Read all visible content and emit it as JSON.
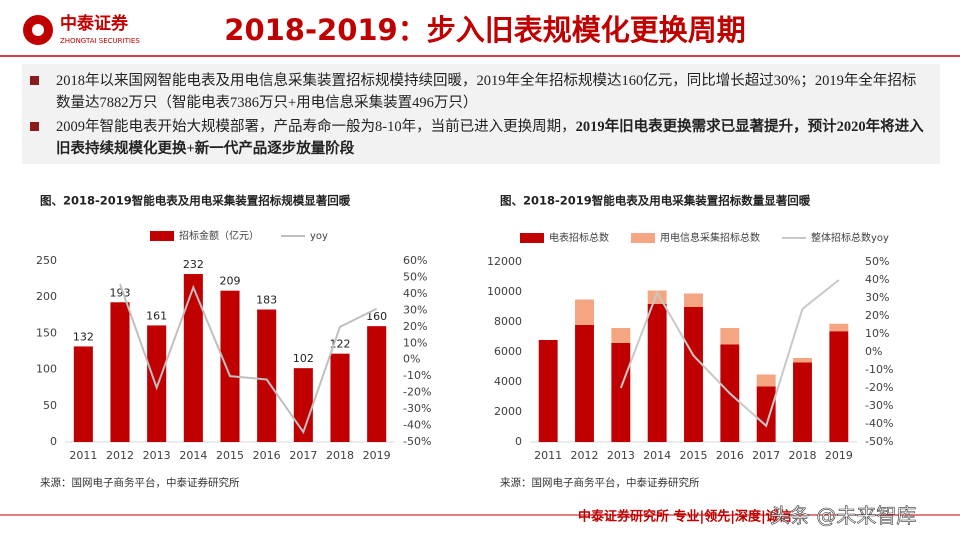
{
  "header": {
    "logo_cn": "中泰证券",
    "logo_en": "ZHONGTAI SECURITIES",
    "title": "2018-2019：步入旧表规模化更换周期"
  },
  "bullets": [
    {
      "text": "2018年以来国网智能电表及用电信息采集装置招标规模持续回暖，2019年全年招标规模达160亿元，同比增长超过30%；2019年全年招标数量达7882万只（智能电表7386万只+用电信息采集装置496万只）"
    },
    {
      "text": "2009年智能电表开始大规模部署，产品寿命一般为8-10年，当前已进入更换周期，",
      "bold": "2019年旧电表更换需求已显著提升，预计2020年将进入旧表持续规模化更换+新一代产品逐步放量阶段"
    }
  ],
  "footer": "中泰证券研究所 专业|领先|深度|诚信",
  "watermark": "头条 @未来智库",
  "chart_data": [
    {
      "type": "bar",
      "title": "图、2018-2019智能电表及用电采集装置招标规模显著回暖",
      "source": "来源：国网电子商务平台，中泰证券研究所",
      "categories": [
        "2011",
        "2012",
        "2013",
        "2014",
        "2015",
        "2016",
        "2017",
        "2018",
        "2019"
      ],
      "series": [
        {
          "name": "招标金额（亿元）",
          "color": "#c00000",
          "values": [
            132,
            193,
            161,
            232,
            209,
            183,
            102,
            122,
            160
          ]
        },
        {
          "name": "yoy",
          "color": "#bfbfbf",
          "type": "line",
          "axis": "y2",
          "values": [
            null,
            46,
            -17,
            44,
            -10,
            -12,
            -44,
            20,
            31
          ]
        }
      ],
      "value_labels_shown": true,
      "ylim": [
        0,
        250
      ],
      "yticks": [
        0,
        50,
        100,
        150,
        200,
        250
      ],
      "y2lim": [
        -50,
        60
      ],
      "y2ticks": [
        {
          "value": -50,
          "label": "-50%"
        },
        {
          "value": -40,
          "label": "-40%"
        },
        {
          "value": -30,
          "label": "-30%"
        },
        {
          "value": -20,
          "label": "-20%"
        },
        {
          "value": -10,
          "label": "-10%"
        },
        {
          "value": 0,
          "label": "0%"
        },
        {
          "value": 10,
          "label": "10%"
        },
        {
          "value": 20,
          "label": "20%"
        },
        {
          "value": 30,
          "label": "30%"
        },
        {
          "value": 40,
          "label": "40%"
        },
        {
          "value": 50,
          "label": "50%"
        },
        {
          "value": 60,
          "label": "60%"
        }
      ]
    },
    {
      "type": "stacked_bar",
      "title": "图、2018-2019智能电表及用电采集装置招标数量显著回暖",
      "source": "来源：国网电子商务平台，中泰证券研究所",
      "categories": [
        "2011",
        "2012",
        "2013",
        "2014",
        "2015",
        "2016",
        "2017",
        "2018",
        "2019"
      ],
      "series": [
        {
          "name": "电表招标总数",
          "color": "#c00000",
          "values": [
            6800,
            7800,
            6600,
            9200,
            9000,
            6500,
            3700,
            5300,
            7386
          ]
        },
        {
          "name": "用电信息采集招标总数",
          "color": "#f4a582",
          "values": [
            0,
            1700,
            1000,
            900,
            900,
            1100,
            800,
            300,
            496
          ]
        },
        {
          "name": "整体招标总数yoy",
          "color": "#c8c8c8",
          "type": "line",
          "axis": "y2",
          "values": [
            null,
            null,
            -20,
            33,
            -2,
            -23,
            -41,
            24,
            40
          ]
        }
      ],
      "value_labels_shown": false,
      "ylim": [
        0,
        12000
      ],
      "yticks": [
        0,
        2000,
        4000,
        6000,
        8000,
        10000,
        12000
      ],
      "y2lim": [
        -50,
        50
      ],
      "y2ticks": [
        {
          "value": -50,
          "label": "-50%"
        },
        {
          "value": -40,
          "label": "-40%"
        },
        {
          "value": -30,
          "label": "-30%"
        },
        {
          "value": -20,
          "label": "-20%"
        },
        {
          "value": -10,
          "label": "-10%"
        },
        {
          "value": 0,
          "label": "0%"
        },
        {
          "value": 10,
          "label": "10%"
        },
        {
          "value": 20,
          "label": "20%"
        },
        {
          "value": 30,
          "label": "30%"
        },
        {
          "value": 40,
          "label": "40%"
        },
        {
          "value": 50,
          "label": "50%"
        }
      ]
    }
  ]
}
